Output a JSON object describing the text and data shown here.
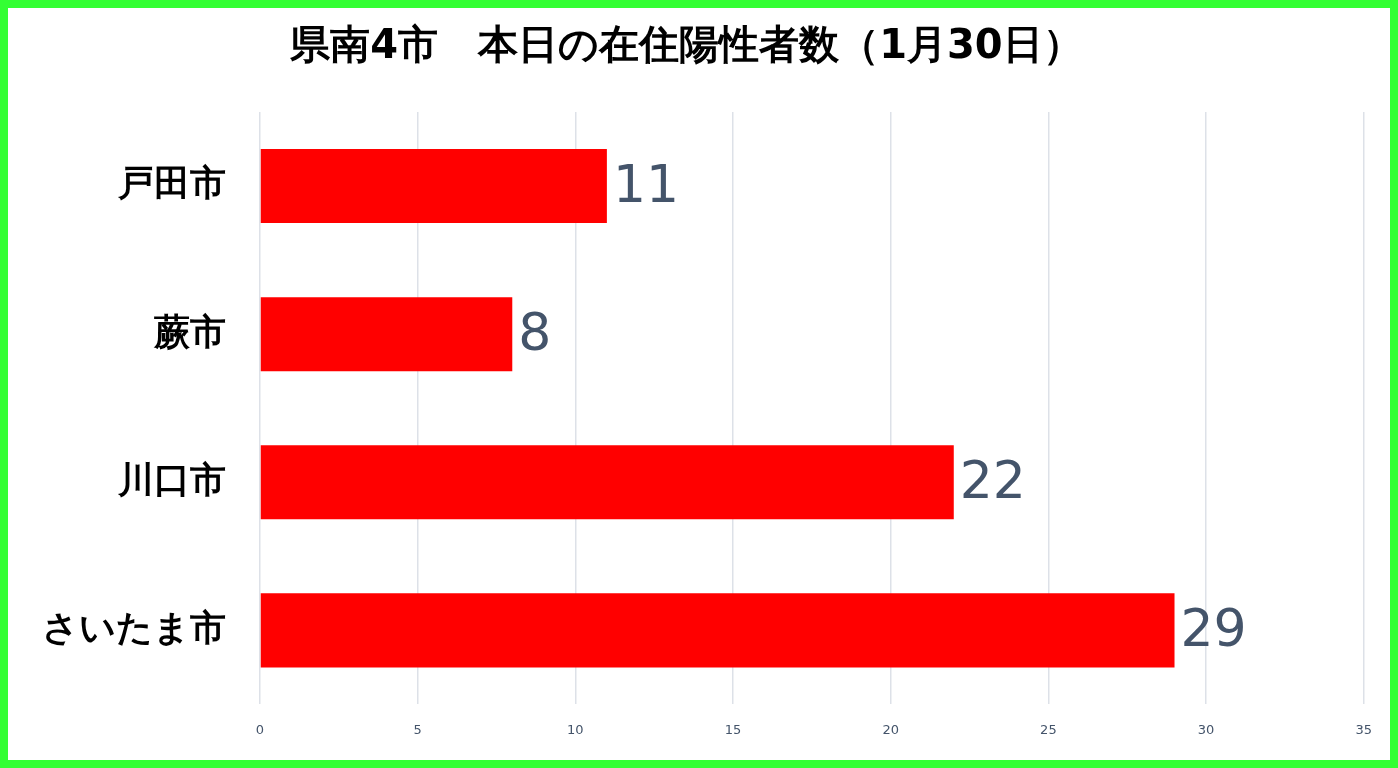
{
  "chart_data": {
    "type": "bar",
    "orientation": "horizontal",
    "title": "県南4市　本日の在住陽性者数（1月30日）",
    "categories": [
      "戸田市",
      "蕨市",
      "川口市",
      "さいたま市"
    ],
    "values": [
      11,
      8,
      22,
      29
    ],
    "color": "#ff0000",
    "xlim": [
      0,
      35
    ],
    "xticks": [
      0,
      5,
      10,
      15,
      20,
      25,
      30,
      35
    ],
    "grid": "x",
    "legend": false,
    "data_labels": true
  }
}
